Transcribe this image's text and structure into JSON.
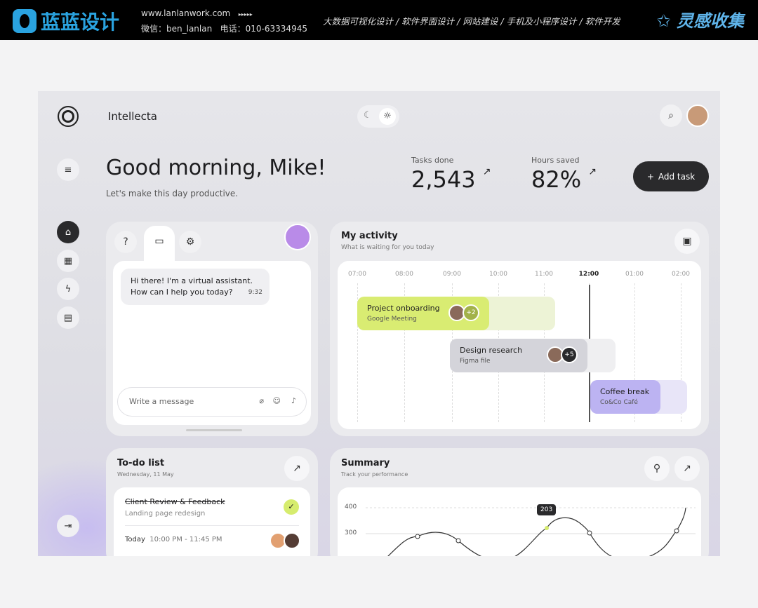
{
  "banner": {
    "brand": "蓝蓝设计",
    "website": "www.lanlanwork.com",
    "arrows": "▸▸▸▸▸",
    "wechat": "微信：ben_lanlan",
    "phone": "电话：010-63334945",
    "services": "大数据可视化设计 / 软件界面设计 / 网站建设 / 手机及小程序设计 / 软件开发",
    "brand2": "灵感收集"
  },
  "app": {
    "name": "Intellecta"
  },
  "greeting": {
    "title": "Good morning, Mike!",
    "subtitle": "Let's make this day productive."
  },
  "stats": [
    {
      "label": "Tasks done",
      "value": "2,543",
      "arrow": "↗"
    },
    {
      "label": "Hours saved",
      "value": "82%",
      "arrow": "↗"
    }
  ],
  "add_task": "Add task",
  "chat": {
    "message": "Hi there! I'm a virtual assistant. How can I help you today?",
    "time": "9:32",
    "placeholder": "Write a message"
  },
  "activity": {
    "title": "My activity",
    "subtitle": "What is waiting for you today",
    "times": [
      "07:00",
      "08:00",
      "09:00",
      "10:00",
      "11:00",
      "12:00",
      "01:00",
      "02:00"
    ],
    "current": "12:00",
    "events": [
      {
        "title": "Project onboarding",
        "sub": "Google Meeting",
        "more": "+2",
        "color": "#d9ec72"
      },
      {
        "title": "Design research",
        "sub": "Figma file",
        "more": "+5",
        "color": "#d4d4da"
      },
      {
        "title": "Coffee break",
        "sub": "Co&Co Café",
        "color": "#bcb3f2"
      }
    ]
  },
  "todo": {
    "title": "To-do list",
    "date": "Wednesday, 11 May",
    "item": {
      "title": "Client Review & Feedback",
      "sub": "Landing page redesign",
      "day": "Today",
      "time": "10:00 PM - 11:45 PM",
      "done": true
    }
  },
  "summary": {
    "title": "Summary",
    "subtitle": "Track your performance",
    "y_ticks": [
      "400",
      "300"
    ],
    "tooltip": "203"
  }
}
